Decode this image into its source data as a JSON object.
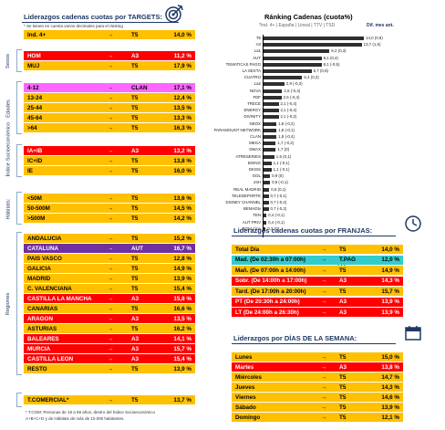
{
  "left": {
    "title": "Liderazgos cadenas cuotas por TARGETS:",
    "note": "* Se tienen en cuenta varios decimales para el ránking",
    "ind": {
      "label": "Ind. 4+",
      "arrow": "→",
      "ch": "T5",
      "val": "14,0 %"
    },
    "groups": [
      {
        "label": "Sexos",
        "rows": [
          {
            "label": "HOM",
            "arrow": "→",
            "ch": "A3",
            "val": "11,2 %",
            "style": "red"
          },
          {
            "label": "MUJ",
            "arrow": "→",
            "ch": "T5",
            "val": "17,9 %",
            "style": "yel"
          }
        ]
      },
      {
        "label": "Edades",
        "rows": [
          {
            "label": "4-12",
            "arrow": "→",
            "ch": "CLAN",
            "val": "17,1 %",
            "style": "pink"
          },
          {
            "label": "13-24",
            "arrow": "→",
            "ch": "T5",
            "val": "12,4 %",
            "style": "yel"
          },
          {
            "label": "25-44",
            "arrow": "→",
            "ch": "T5",
            "val": "13,5 %",
            "style": "yel"
          },
          {
            "label": "45-64",
            "arrow": "→",
            "ch": "T5",
            "val": "13,3 %",
            "style": "yel"
          },
          {
            "label": ">64",
            "arrow": "→",
            "ch": "T5",
            "val": "16,3 %",
            "style": "yel"
          }
        ]
      },
      {
        "label": "Índice Socioeconómico",
        "rows": [
          {
            "label": "IA+IB",
            "arrow": "→",
            "ch": "A3",
            "val": "13,2 %",
            "style": "red"
          },
          {
            "label": "IC+ID",
            "arrow": "→",
            "ch": "T5",
            "val": "13,8 %",
            "style": "yel"
          },
          {
            "label": "IE",
            "arrow": "→",
            "ch": "T5",
            "val": "16,0 %",
            "style": "yel"
          }
        ]
      },
      {
        "label": "Hábitats:",
        "rows": [
          {
            "label": "<50M",
            "arrow": "→",
            "ch": "T5",
            "val": "13,6 %",
            "style": "yel"
          },
          {
            "label": "50-500M",
            "arrow": "→",
            "ch": "T5",
            "val": "14,5 %",
            "style": "yel"
          },
          {
            "label": ">500M",
            "arrow": "→",
            "ch": "T5",
            "val": "14,2 %",
            "style": "yel"
          }
        ]
      },
      {
        "label": "Regiones",
        "rows": [
          {
            "label": "ANDALUCIA",
            "arrow": "→",
            "ch": "T5",
            "val": "15,2 %",
            "style": "yel"
          },
          {
            "label": "CATALUÑA",
            "arrow": "→",
            "ch": "AUT",
            "val": "16,7 %",
            "style": "pur"
          },
          {
            "label": "PAÍS VASCO",
            "arrow": "→",
            "ch": "T5",
            "val": "12,8 %",
            "style": "yel"
          },
          {
            "label": "GALICIA",
            "arrow": "→",
            "ch": "T5",
            "val": "14,9 %",
            "style": "yel"
          },
          {
            "label": "MADRID",
            "arrow": "→",
            "ch": "T5",
            "val": "13,9 %",
            "style": "yel"
          },
          {
            "label": "C. VALENCIANA",
            "arrow": "→",
            "ch": "T5",
            "val": "15,4 %",
            "style": "yel"
          },
          {
            "label": "CASTILLA LA MANCHA",
            "arrow": "→",
            "ch": "A3",
            "val": "15,8 %",
            "style": "red"
          },
          {
            "label": "CANARIAS",
            "arrow": "→",
            "ch": "T5",
            "val": "16,6 %",
            "style": "yel"
          },
          {
            "label": "ARAGÓN",
            "arrow": "→",
            "ch": "A3",
            "val": "13,5 %",
            "style": "red"
          },
          {
            "label": "ASTURIAS",
            "arrow": "→",
            "ch": "T5",
            "val": "16,2 %",
            "style": "yel"
          },
          {
            "label": "BALEARES",
            "arrow": "→",
            "ch": "A3",
            "val": "14,1 %",
            "style": "red"
          },
          {
            "label": "MURCIA",
            "arrow": "→",
            "ch": "A3",
            "val": "15,7 %",
            "style": "red"
          },
          {
            "label": "CASTILLA LEÓN",
            "arrow": "→",
            "ch": "A3",
            "val": "15,4 %",
            "style": "red"
          },
          {
            "label": "RESTO",
            "arrow": "→",
            "ch": "T5",
            "val": "13,9 %",
            "style": "yel"
          }
        ]
      }
    ],
    "comercial": {
      "label": "T.COMERCIAL*",
      "arrow": "→",
      "ch": "T5",
      "val": "13,7 %"
    },
    "footnote1": "* T.COM: Personas de 18 a 59 años, dentro del Índice Socioeconómico",
    "footnote2": "A+B+C+D y de Hábitats de más de 10.000 habitantes."
  },
  "ranking": {
    "title": "Ránking Cadenas (cuota%)",
    "subtitle": "*Ind. 4+ | España | Lineal | TTV | TSD",
    "diff": "Dif. mes ant.",
    "chart_data": {
      "type": "bar",
      "categories": [
        "T5",
        "A3",
        "La1",
        "AUT",
        "TEMATICAS PAGO",
        "LA SEXTA",
        "CUATRO",
        "La2",
        "NOVA",
        "FDF",
        "TRECE",
        "ENERGY",
        "DIVINITY",
        "NEOX",
        "PARAMOUNT NETWORK",
        "CLAN",
        "MEGA",
        "DMAX",
        "ATRESERIES",
        "BOING",
        "DKISS",
        "GOL",
        "24H",
        "REAL MADRID",
        "TELEDEPORTE",
        "DISNEY CHANNEL",
        "BEMADtv",
        "TEN",
        "AUT PRIV",
        "BOM Cine"
      ],
      "values": [
        14.0,
        13.7,
        9.2,
        8.1,
        8.1,
        6.7,
        5.4,
        2.9,
        2.6,
        2.5,
        2.1,
        2.1,
        2.1,
        1.8,
        1.8,
        1.8,
        1.7,
        1.7,
        1.5,
        1.1,
        1.1,
        0.9,
        0.9,
        0.8,
        0.7,
        0.7,
        0.7,
        0.4,
        0.4,
        0.3
      ],
      "labels": [
        "14,0 (0,8)",
        "13,7 (1,5)",
        "9,2 (0,3)",
        "8,1 (0,4)",
        "8,1 (-0,5)",
        "6,7 (0,8)",
        "5,4 (0,2)",
        "2,9 (-0,2)",
        "2,6 (-0,4)",
        "2,5 (-0,4)",
        "2,1 (-0,4)",
        "2,1 (-0,4)",
        "2,1 (-0,2)",
        "1,8 (-0,2)",
        "1,8 (-0,1)",
        "1,8 (-0,4)",
        "1,7 (-0,2)",
        "1,7 (0)",
        "1,5 (0,1)",
        "1,1 (-0,1)",
        "1,1 (-0,1)",
        "0,9 (0)",
        "0,9 (-0,1)",
        "0,8 (0,1)",
        "0,7 (-0,1)",
        "0,7 (-0,2)",
        "0,7 (-0,2)",
        "0,4 (-0,1)",
        "0,4 (-0,1)",
        "0,3 (0)"
      ]
    }
  },
  "franjas": {
    "title": "Liderazgos cadenas cuotas por FRANJAS:",
    "rows": [
      {
        "label": "Total Día",
        "arrow": "→",
        "ch": "T5",
        "val": "14,0 %",
        "style": "yel"
      },
      {
        "label": "Mad. (De 02:30h a 07:00h)",
        "arrow": "→",
        "ch": "T.PAG",
        "val": "12,0 %",
        "style": "cyan"
      },
      {
        "label": "Mañ. (De 07:00h a 14:00h)",
        "arrow": "→",
        "ch": "T5",
        "val": "14,9 %",
        "style": "yel"
      },
      {
        "label": "Sobr. (De 14:00h a 17:00h)",
        "arrow": "→",
        "ch": "A3",
        "val": "14,3 %",
        "style": "red"
      },
      {
        "label": "Tard. (De 17:00h a 20:00h)",
        "arrow": "→",
        "ch": "T5",
        "val": "15,7 %",
        "style": "yel"
      },
      {
        "label": "PT (De 20:30h a 24:00h)",
        "arrow": "→",
        "ch": "A3",
        "val": "13,9 %",
        "style": "red"
      },
      {
        "label": "LT (De 24:00h a 26:30h)",
        "arrow": "→",
        "ch": "A3",
        "val": "13,9 %",
        "style": "red"
      }
    ]
  },
  "dias": {
    "title": "Liderazgos por DÍAS DE LA SEMANA:",
    "rows": [
      {
        "label": "Lunes",
        "arrow": "→",
        "ch": "T5",
        "val": "15,0 %",
        "style": "yel"
      },
      {
        "label": "Martes",
        "arrow": "→",
        "ch": "A3",
        "val": "13,8 %",
        "style": "red"
      },
      {
        "label": "Miércoles",
        "arrow": "→",
        "ch": "T5",
        "val": "14,7 %",
        "style": "yel"
      },
      {
        "label": "Jueves",
        "arrow": "→",
        "ch": "T5",
        "val": "14,3 %",
        "style": "yel"
      },
      {
        "label": "Viernes",
        "arrow": "→",
        "ch": "T5",
        "val": "14,6 %",
        "style": "yel"
      },
      {
        "label": "Sábado",
        "arrow": "→",
        "ch": "T5",
        "val": "13,9 %",
        "style": "yel"
      },
      {
        "label": "Domingo",
        "arrow": "→",
        "ch": "T5",
        "val": "12,1 %",
        "style": "yel"
      }
    ]
  }
}
